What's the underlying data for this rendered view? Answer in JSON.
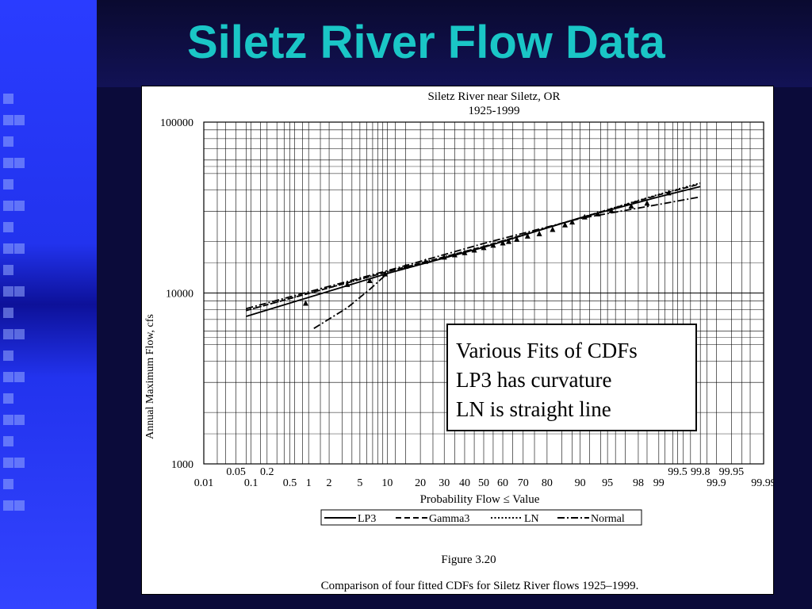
{
  "slide": {
    "title": "Siletz River Flow Data",
    "callout": [
      "Various Fits of CDFs",
      "LP3 has curvature",
      "LN is straight  line"
    ]
  },
  "figure": {
    "caption_number": "Figure 3.20",
    "caption_text": "Comparison of four fitted CDFs for Siletz River flows 1925–1999."
  },
  "colors": {
    "title": "#1ac6c6",
    "background": "#0b0b3a",
    "band": "#2233ee"
  },
  "chart_data": {
    "type": "line",
    "title": "Siletz River near Siletz, OR",
    "subtitle": "1925-1999",
    "ylabel": "Annual Maximum Flow, cfs",
    "xlabel": "Probability Flow ≤ Value",
    "y_scale": "log",
    "ylim": [
      1000,
      100000
    ],
    "y_ticks": [
      "100000",
      "10000",
      "1000"
    ],
    "x_scale": "normal-probability",
    "xlim": [
      0.01,
      99.99
    ],
    "x_ticks_bottom": [
      "0.01",
      "0.1",
      "0.5",
      "1",
      "2",
      "5",
      "10",
      "20",
      "30",
      "40",
      "50",
      "60",
      "70",
      "80",
      "90",
      "95",
      "98",
      "99",
      "99.9",
      "99.99"
    ],
    "x_ticks_top": [
      "0.05",
      "0.2",
      "99.5",
      "99.8",
      "99.95"
    ],
    "grid": true,
    "legend_position": "bottom",
    "series": [
      {
        "name": "LP3",
        "style": "solid",
        "x": [
          0.08,
          10,
          50,
          90,
          99,
          99.8
        ],
        "y": [
          7300,
          13000,
          18500,
          27500,
          36500,
          42000
        ]
      },
      {
        "name": "Gamma3",
        "style": "dashed",
        "x": [
          0.08,
          10,
          50,
          90,
          99,
          99.8
        ],
        "y": [
          7900,
          13300,
          18700,
          27500,
          37500,
          43500
        ]
      },
      {
        "name": "LN",
        "style": "dotted",
        "x": [
          0.08,
          10,
          50,
          90,
          99,
          99.8
        ],
        "y": [
          7900,
          13300,
          18700,
          27500,
          37800,
          44000
        ]
      },
      {
        "name": "Normal",
        "style": "dashdot",
        "x": [
          0.08,
          10,
          50,
          90,
          99,
          99.8
        ],
        "y": [
          8100,
          13500,
          19500,
          27300,
          33000,
          36500
        ]
      }
    ],
    "observed": {
      "x": [
        0.9,
        3.5,
        6.5,
        9.5,
        15,
        22,
        30,
        35,
        40,
        45,
        50,
        55,
        60,
        63,
        67,
        72,
        77,
        82,
        86,
        88,
        91,
        93.5,
        95.5,
        97.5,
        98.5,
        99.3
      ],
      "y": [
        8700,
        11200,
        11800,
        12900,
        14300,
        15300,
        16200,
        16700,
        17200,
        17800,
        18400,
        19000,
        19600,
        20000,
        20600,
        21500,
        22200,
        23500,
        25000,
        26000,
        27800,
        29000,
        30300,
        32200,
        33500,
        38500
      ]
    },
    "extra_curve": {
      "x": [
        1.2,
        3.5,
        6.5,
        10
      ],
      "y": [
        6200,
        8200,
        10500,
        13000
      ]
    }
  }
}
